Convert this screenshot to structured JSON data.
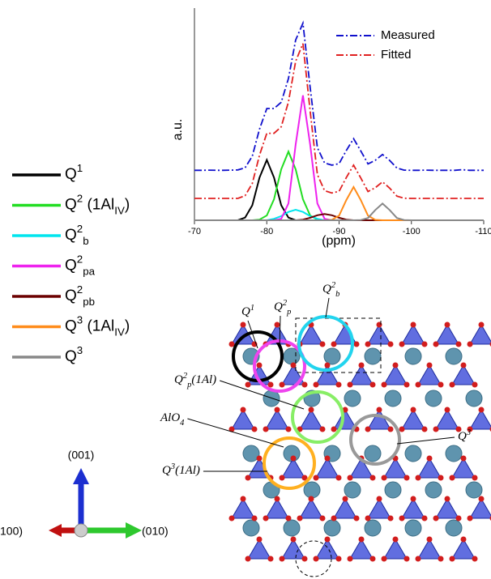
{
  "chart_data": {
    "type": "line",
    "ylabel": "a.u.",
    "xlabel": "(ppm)",
    "xlim": [
      -70,
      -110
    ],
    "xticks": [
      -70,
      -80,
      -90,
      -100,
      -110
    ],
    "ylim": [
      0,
      1
    ],
    "x": [
      -70,
      -71,
      -72,
      -73,
      -74,
      -75,
      -76,
      -77,
      -78,
      -79,
      -80,
      -81,
      -82,
      -83,
      -84,
      -85,
      -86,
      -87,
      -88,
      -89,
      -90,
      -91,
      -92,
      -93,
      -94,
      -95,
      -96,
      -97,
      -98,
      -99,
      -100,
      -101,
      -102,
      -103,
      -104,
      -105,
      -106,
      -107,
      -108,
      -109,
      -110
    ],
    "series": [
      {
        "name": "Measured",
        "color": "#1010cc",
        "dash": "dash-dot",
        "legend": "top-right",
        "values": [
          0.24,
          0.24,
          0.241,
          0.24,
          0.24,
          0.241,
          0.242,
          0.252,
          0.308,
          0.438,
          0.537,
          0.537,
          0.567,
          0.681,
          0.866,
          0.947,
          0.638,
          0.349,
          0.275,
          0.265,
          0.272,
          0.335,
          0.392,
          0.333,
          0.271,
          0.288,
          0.316,
          0.287,
          0.251,
          0.241,
          0.24,
          0.24,
          0.241,
          0.24,
          0.24,
          0.24,
          0.24,
          0.243,
          0.24,
          0.24,
          0.24
        ]
      },
      {
        "name": "Fitted",
        "color": "#e02020",
        "dash": "dash-dot",
        "legend": "top-right",
        "values": [
          0.105,
          0.105,
          0.105,
          0.105,
          0.105,
          0.105,
          0.105,
          0.118,
          0.177,
          0.313,
          0.418,
          0.418,
          0.449,
          0.569,
          0.764,
          0.849,
          0.524,
          0.22,
          0.142,
          0.131,
          0.139,
          0.205,
          0.265,
          0.203,
          0.138,
          0.156,
          0.185,
          0.154,
          0.116,
          0.106,
          0.105,
          0.105,
          0.105,
          0.105,
          0.105,
          0.105,
          0.105,
          0.105,
          0.105,
          0.105,
          0.105
        ]
      },
      {
        "name": "Q1",
        "color": "#000000",
        "dash": "solid",
        "legend": "outside-left",
        "values": [
          0,
          0,
          0,
          0,
          0,
          0,
          0,
          0.013,
          0.072,
          0.205,
          0.29,
          0.205,
          0.072,
          0.013,
          0,
          0,
          0,
          0,
          0,
          0,
          0,
          0,
          0,
          0,
          0,
          0,
          0,
          0,
          0,
          0,
          0,
          0,
          0,
          0,
          0,
          0,
          0,
          0,
          0,
          0,
          0
        ]
      },
      {
        "name": "Q2 (1AlIV)",
        "color": "#22dd22",
        "dash": "solid",
        "legend": "outside-left",
        "values": [
          0,
          0,
          0,
          0,
          0,
          0,
          0,
          0,
          0,
          0.003,
          0.023,
          0.101,
          0.245,
          0.33,
          0.245,
          0.101,
          0.023,
          0.003,
          0,
          0,
          0,
          0,
          0,
          0,
          0,
          0,
          0,
          0,
          0,
          0,
          0,
          0,
          0,
          0,
          0,
          0,
          0,
          0,
          0,
          0,
          0
        ]
      },
      {
        "name": "Q2b",
        "color": "#00e5ee",
        "dash": "solid",
        "legend": "outside-left",
        "values": [
          0,
          0,
          0,
          0,
          0,
          0,
          0,
          0,
          0,
          0,
          0,
          0.007,
          0.02,
          0.04,
          0.05,
          0.04,
          0.02,
          0.007,
          0,
          0,
          0,
          0,
          0,
          0,
          0,
          0,
          0,
          0,
          0,
          0,
          0,
          0,
          0,
          0,
          0,
          0,
          0,
          0,
          0,
          0,
          0
        ]
      },
      {
        "name": "Q2pa",
        "color": "#ee22ee",
        "dash": "solid",
        "legend": "outside-left",
        "values": [
          0,
          0,
          0,
          0,
          0,
          0,
          0,
          0,
          0,
          0,
          0,
          0,
          0.007,
          0.081,
          0.364,
          0.6,
          0.364,
          0.081,
          0.007,
          0,
          0,
          0,
          0,
          0,
          0,
          0,
          0,
          0,
          0,
          0,
          0,
          0,
          0,
          0,
          0,
          0,
          0,
          0,
          0,
          0,
          0
        ]
      },
      {
        "name": "Q2pb",
        "color": "#6b0000",
        "dash": "solid",
        "legend": "outside-left",
        "values": [
          0,
          0,
          0,
          0,
          0,
          0,
          0,
          0,
          0,
          0,
          0,
          0,
          0,
          0,
          0,
          0.003,
          0.012,
          0.024,
          0.03,
          0.024,
          0.012,
          0.003,
          0,
          0,
          0,
          0,
          0,
          0,
          0,
          0,
          0,
          0,
          0,
          0,
          0,
          0,
          0,
          0,
          0,
          0,
          0
        ]
      },
      {
        "name": "Q3 (1AlIV)",
        "color": "#ff8c1a",
        "dash": "solid",
        "legend": "outside-left",
        "values": [
          0,
          0,
          0,
          0,
          0,
          0,
          0,
          0,
          0,
          0,
          0,
          0,
          0,
          0,
          0,
          0,
          0,
          0,
          0,
          0.002,
          0.022,
          0.097,
          0.16,
          0.097,
          0.022,
          0.002,
          0,
          0,
          0,
          0,
          0,
          0,
          0,
          0,
          0,
          0,
          0,
          0,
          0,
          0,
          0
        ]
      },
      {
        "name": "Q3",
        "color": "#888888",
        "dash": "solid",
        "legend": "outside-left",
        "values": [
          0,
          0,
          0,
          0,
          0,
          0,
          0,
          0,
          0,
          0,
          0,
          0,
          0,
          0,
          0,
          0,
          0,
          0,
          0,
          0,
          0,
          0,
          0,
          0.001,
          0.011,
          0.049,
          0.08,
          0.049,
          0.011,
          0.001,
          0,
          0,
          0,
          0,
          0,
          0,
          0,
          0,
          0,
          0,
          0
        ]
      }
    ]
  },
  "structure": {
    "labels": [
      "Q1",
      "Q2p",
      "Q2b",
      "Q2p(1Al)",
      "AlO4",
      "Q3",
      "Q3(1Al)"
    ],
    "axes": [
      "(001)",
      "(010)",
      "100)"
    ]
  }
}
